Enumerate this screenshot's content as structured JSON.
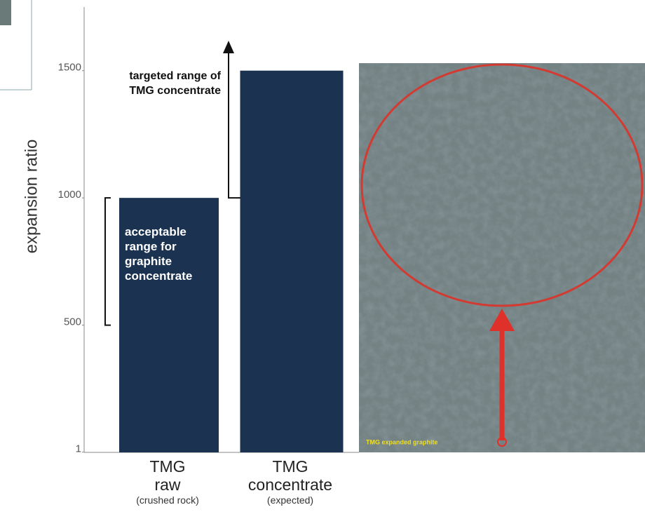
{
  "chart_data": {
    "type": "bar",
    "ylabel": "expansion ratio",
    "categories": [
      "TMG raw",
      "TMG concentrate"
    ],
    "category_notes": [
      "(crushed rock)",
      "(expected)"
    ],
    "values": [
      1000,
      1500
    ],
    "color": "#1b3350",
    "ylim": [
      0,
      1750
    ],
    "yticks": [
      1,
      500,
      1000,
      1500
    ],
    "annotations": [
      {
        "text": "acceptable range for graphite concentrate",
        "range": [
          500,
          1000
        ]
      },
      {
        "text": "targeted range of TMG concentrate",
        "from": 1000
      }
    ]
  },
  "photo": {
    "caption": "TMG expanded graphite"
  }
}
